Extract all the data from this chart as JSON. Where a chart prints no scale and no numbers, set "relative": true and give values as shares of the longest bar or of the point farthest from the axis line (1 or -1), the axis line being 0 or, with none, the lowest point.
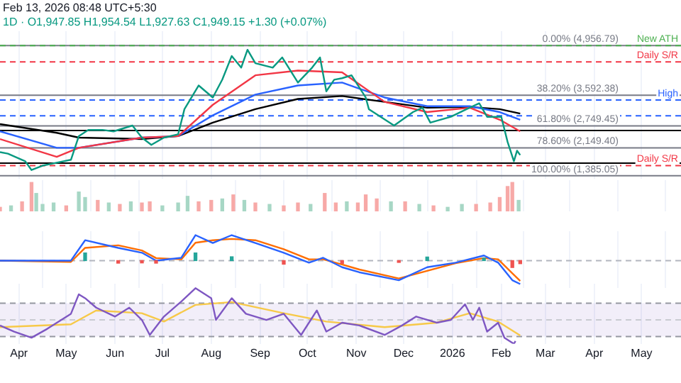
{
  "chart_data": [
    {
      "type": "line",
      "title": "Feb 13, 2026 08:48 UTC+5:30",
      "subtitle": "1D · O1,947.85 H1,954.54 L1,927.63 C1,949.15 +1.30 (+0.07%)",
      "xlim": [
        "2025-03-20",
        "2026-05-26"
      ],
      "xticks": [
        "2025-04-01",
        "2025-05-01",
        "2025-06-01",
        "2025-07-01",
        "2025-08-01",
        "2025-09-01",
        "2025-10-01",
        "2025-11-01",
        "2025-12-01",
        "2026-01-01",
        "2026-02-01",
        "2026-03-01",
        "2026-04-01",
        "2026-05-01"
      ],
      "ylim": [
        1300,
        5350
      ],
      "tick_labels": false,
      "grid": "x",
      "x": [
        "2025-03-20",
        "2025-04-25",
        "2025-05-09",
        "2025-06-18",
        "2025-07-11",
        "2025-08-02",
        "2025-08-29",
        "2025-09-25",
        "2025-10-23",
        "2025-11-19",
        "2025-12-16",
        "2026-01-12",
        "2026-01-31",
        "2026-02-13"
      ],
      "series": [
        {
          "type": "line",
          "color": "#089981",
          "x": [
            "2025-03-20",
            "2025-03-25",
            "2025-04-05",
            "2025-04-09",
            "2025-04-16",
            "2025-04-25",
            "2025-05-04",
            "2025-05-09",
            "2025-05-15",
            "2025-05-24",
            "2025-05-31",
            "2025-06-12",
            "2025-06-18",
            "2025-06-24",
            "2025-07-02",
            "2025-07-11",
            "2025-07-15",
            "2025-07-24",
            "2025-08-02",
            "2025-08-08",
            "2025-08-14",
            "2025-08-20",
            "2025-08-24",
            "2025-08-29",
            "2025-09-09",
            "2025-09-15",
            "2025-09-25",
            "2025-10-04",
            "2025-10-09",
            "2025-10-13",
            "2025-10-18",
            "2025-10-23",
            "2025-10-29",
            "2025-11-07",
            "2025-11-09",
            "2025-11-25",
            "2025-12-07",
            "2025-12-13",
            "2025-12-18",
            "2025-12-31",
            "2026-01-10",
            "2026-01-18",
            "2026-01-23",
            "2026-02-01",
            "2026-02-05",
            "2026-02-09",
            "2026-02-11",
            "2026-02-13"
          ],
          "values": [
            2030,
            1990,
            1780,
            1540,
            1660,
            1740,
            1820,
            2470,
            2640,
            2640,
            2600,
            2760,
            2430,
            2230,
            2430,
            2520,
            3210,
            3860,
            3530,
            4020,
            4670,
            4350,
            4840,
            4470,
            4350,
            4630,
            3940,
            4350,
            4630,
            3700,
            4020,
            4060,
            4140,
            3530,
            3210,
            2760,
            3130,
            3250,
            2840,
            3000,
            3210,
            3370,
            3000,
            3000,
            2310,
            1780,
            2070,
            1950
          ]
        },
        {
          "type": "line",
          "color": "#f23645",
          "values": [
            2390,
            1900,
            2150,
            2430,
            2470,
            3330,
            4140,
            4270,
            4220,
            3410,
            3130,
            3250,
            2920,
            2600
          ]
        },
        {
          "type": "line",
          "color": "#2962ff",
          "values": [
            2600,
            2150,
            2150,
            2430,
            2470,
            3040,
            3610,
            3860,
            3940,
            3530,
            3290,
            3290,
            3130,
            2920
          ]
        },
        {
          "type": "line",
          "color": "#000000",
          "values": [
            2800,
            2560,
            2430,
            2390,
            2470,
            2840,
            3210,
            3490,
            3570,
            3410,
            3250,
            3270,
            3210,
            3090
          ]
        }
      ],
      "ref_lines": [
        {
          "axis": "y",
          "value": 4956.79,
          "label": "0.00% (4,956.79)",
          "color": "#787b86"
        },
        {
          "axis": "y",
          "value": 4956.79,
          "label": "New ATH",
          "color": "#4caf50",
          "line_style": "dashed"
        },
        {
          "axis": "y",
          "value": 4510,
          "label": "Daily S/R",
          "color": "#f23645",
          "line_style": "dashed"
        },
        {
          "axis": "y",
          "value": 3592.38,
          "label": "38.20% (3,592.38)",
          "color": "#787b86"
        },
        {
          "axis": "y",
          "value": 3460,
          "label": "High",
          "color": "#2962ff",
          "line_style": "dashed"
        },
        {
          "axis": "y",
          "value": 3030,
          "color": "#2962ff",
          "line_style": "dashed"
        },
        {
          "axis": "y",
          "value": 2749.45,
          "label": "61.80% (2,749.45)",
          "color": "#787b86"
        },
        {
          "axis": "y",
          "value": 2625,
          "color": "#000000"
        },
        {
          "axis": "y",
          "value": 2149.4,
          "label": "78.60% (2,149.40)",
          "color": "#787b86"
        },
        {
          "axis": "y",
          "value": 1730,
          "color": "#000000"
        },
        {
          "axis": "y",
          "value": 1660,
          "label": "Daily S/R",
          "color": "#f23645",
          "line_style": "dashed"
        },
        {
          "axis": "y",
          "value": 1385.05,
          "label": "100.00% (1,385.05)",
          "color": "#787b86"
        }
      ]
    },
    {
      "type": "bar",
      "relative": true,
      "tick_labels": false,
      "grid": "x",
      "xlim": [
        "2025-03-20",
        "2026-05-26"
      ],
      "xticks": [
        "2025-04-01",
        "2025-05-01",
        "2025-06-01",
        "2025-07-01",
        "2025-08-01",
        "2025-09-01",
        "2025-10-01",
        "2025-11-01",
        "2025-12-01",
        "2026-01-01",
        "2026-02-01",
        "2026-03-01",
        "2026-04-01",
        "2026-05-01"
      ],
      "x": [
        "2025-03-20",
        "2025-03-27",
        "2025-04-03",
        "2025-04-09",
        "2025-04-12",
        "2025-04-16",
        "2025-04-23",
        "2025-05-01",
        "2025-05-09",
        "2025-05-13",
        "2025-05-21",
        "2025-05-28",
        "2025-06-04",
        "2025-06-11",
        "2025-06-18",
        "2025-06-23",
        "2025-07-01",
        "2025-07-11",
        "2025-07-17",
        "2025-07-24",
        "2025-08-01",
        "2025-08-08",
        "2025-08-15",
        "2025-08-22",
        "2025-08-29",
        "2025-09-07",
        "2025-09-16",
        "2025-09-25",
        "2025-10-03",
        "2025-10-12",
        "2025-10-19",
        "2025-10-26",
        "2025-11-02",
        "2025-11-07",
        "2025-11-14",
        "2025-11-23",
        "2025-12-02",
        "2025-12-11",
        "2025-12-20",
        "2025-12-29",
        "2026-01-07",
        "2026-01-16",
        "2026-01-25",
        "2026-01-31",
        "2026-02-05",
        "2026-02-08",
        "2026-02-12"
      ],
      "values": [
        0.14,
        0.19,
        0.33,
        1,
        0.62,
        0.24,
        0.29,
        0.19,
        0.67,
        0.48,
        0.38,
        0.29,
        0.24,
        0.33,
        0.29,
        0.33,
        0.19,
        0.29,
        0.52,
        0.33,
        0.38,
        0.43,
        0.57,
        0.38,
        0.29,
        0.24,
        0.19,
        0.29,
        0.24,
        0.62,
        0.29,
        0.33,
        0.29,
        0.57,
        0.43,
        0.33,
        0.33,
        0.24,
        0.19,
        0.14,
        0.24,
        0.24,
        0.29,
        0.48,
        0.86,
        1,
        0.38
      ],
      "colors": [
        "#f7a9a7",
        "#a7d7c5",
        "#f7a9a7",
        "#f7a9a7",
        "#a7d7c5",
        "#a7d7c5",
        "#a7d7c5",
        "#f7a9a7",
        "#a7d7c5",
        "#a7d7c5",
        "#f7a9a7",
        "#a7d7c5",
        "#f7a9a7",
        "#a7d7c5",
        "#f7a9a7",
        "#f7a9a7",
        "#a7d7c5",
        "#a7d7c5",
        "#a7d7c5",
        "#f7a9a7",
        "#f7a9a7",
        "#a7d7c5",
        "#f7a9a7",
        "#a7d7c5",
        "#f7a9a7",
        "#a7d7c5",
        "#f7a9a7",
        "#f7a9a7",
        "#a7d7c5",
        "#f7a9a7",
        "#f7a9a7",
        "#a7d7c5",
        "#f7a9a7",
        "#f7a9a7",
        "#f7a9a7",
        "#a7d7c5",
        "#f7a9a7",
        "#a7d7c5",
        "#f7a9a7",
        "#a7d7c5",
        "#a7d7c5",
        "#f7a9a7",
        "#f7a9a7",
        "#f7a9a7",
        "#f7a9a7",
        "#f7a9a7",
        "#a7d7c5"
      ]
    },
    {
      "type": "line",
      "relative": true,
      "tick_labels": false,
      "grid": "x",
      "xlim": [
        "2025-03-20",
        "2026-05-26"
      ],
      "xticks": [
        "2025-04-01",
        "2025-05-01",
        "2025-06-01",
        "2025-07-01",
        "2025-08-01",
        "2025-09-01",
        "2025-10-01",
        "2025-11-01",
        "2025-12-01",
        "2026-01-01",
        "2026-02-01",
        "2026-03-01",
        "2026-04-01",
        "2026-05-01"
      ],
      "x": [
        "2025-03-20",
        "2025-05-04",
        "2025-05-13",
        "2025-06-03",
        "2025-06-18",
        "2025-06-27",
        "2025-07-13",
        "2025-07-22",
        "2025-08-02",
        "2025-08-14",
        "2025-08-29",
        "2025-09-16",
        "2025-10-02",
        "2025-10-11",
        "2025-10-23",
        "2025-11-03",
        "2025-11-28",
        "2025-12-16",
        "2026-01-03",
        "2026-01-21",
        "2026-01-30",
        "2026-02-08",
        "2026-02-13"
      ],
      "series": [
        {
          "type": "bar",
          "x": [
            "2025-05-13",
            "2025-06-03",
            "2025-06-18",
            "2025-06-27",
            "2025-07-22",
            "2025-08-14",
            "2025-09-16",
            "2025-10-23",
            "2025-11-28",
            "2025-12-16",
            "2026-01-21",
            "2026-02-08",
            "2026-02-13"
          ],
          "values": [
            0.3,
            -0.1,
            -0.09,
            -0.1,
            0.3,
            0.15,
            -0.14,
            -0.11,
            -0.07,
            0.14,
            0.1,
            -0.27,
            -0.12
          ],
          "colors": [
            "#26a69a",
            "#ef5350",
            "#ef5350",
            "#ef5350",
            "#26a69a",
            "#26a69a",
            "#ef5350",
            "#ef5350",
            "#ef5350",
            "#26a69a",
            "#26a69a",
            "#ef5350",
            "#ef5350"
          ]
        },
        {
          "type": "line",
          "color": "#2962ff",
          "values": [
            0,
            0,
            0.8,
            0.5,
            0.31,
            0,
            0.11,
            1,
            0.69,
            1,
            0.69,
            0.31,
            -0.08,
            0.11,
            -0.26,
            -0.46,
            -0.77,
            -0.26,
            -0.08,
            0.2,
            -0.08,
            -0.77,
            -0.92
          ]
        },
        {
          "type": "line",
          "color": "#ff6d00",
          "values": [
            0,
            -0.05,
            0.5,
            0.6,
            0.4,
            0.1,
            0.05,
            0.7,
            0.8,
            0.85,
            0.8,
            0.45,
            0.05,
            0.05,
            -0.15,
            -0.35,
            -0.7,
            -0.4,
            -0.1,
            0.1,
            0.05,
            -0.5,
            -0.8
          ]
        }
      ],
      "ref_lines": [
        {
          "axis": "y",
          "value": 0,
          "color": "#b2b5be",
          "line_style": "dashed"
        }
      ]
    },
    {
      "type": "line",
      "relative": true,
      "tick_labels": "x",
      "grid": "x",
      "xlim": [
        "2025-03-20",
        "2026-05-26"
      ],
      "xticks": [
        {
          "value": "2025-04-01",
          "label": "Apr"
        },
        {
          "value": "2025-05-01",
          "label": "May"
        },
        {
          "value": "2025-06-01",
          "label": "Jun"
        },
        {
          "value": "2025-07-01",
          "label": "Jul"
        },
        {
          "value": "2025-08-01",
          "label": "Aug"
        },
        {
          "value": "2025-09-01",
          "label": "Sep"
        },
        {
          "value": "2025-10-01",
          "label": "Oct"
        },
        {
          "value": "2025-11-01",
          "label": "Nov"
        },
        {
          "value": "2025-12-01",
          "label": "Dec"
        },
        {
          "value": "2026-01-01",
          "label": "2026"
        },
        {
          "value": "2026-02-01",
          "label": "Feb"
        },
        {
          "value": "2026-03-01",
          "label": "Mar"
        },
        {
          "value": "2026-04-01",
          "label": "Apr"
        },
        {
          "value": "2026-05-01",
          "label": "May"
        }
      ],
      "series": [
        {
          "type": "line",
          "color": "#7e57c2",
          "x": [
            "2025-03-20",
            "2025-03-29",
            "2025-04-09",
            "2025-04-19",
            "2025-05-04",
            "2025-05-09",
            "2025-05-13",
            "2025-05-20",
            "2025-06-01",
            "2025-06-10",
            "2025-06-18",
            "2025-06-23",
            "2025-07-02",
            "2025-07-13",
            "2025-07-22",
            "2025-08-01",
            "2025-08-04",
            "2025-08-14",
            "2025-08-23",
            "2025-09-05",
            "2025-09-16",
            "2025-09-27",
            "2025-10-07",
            "2025-10-13",
            "2025-10-23",
            "2025-11-03",
            "2025-11-19",
            "2025-11-30",
            "2025-12-09",
            "2025-12-22",
            "2025-12-31",
            "2026-01-09",
            "2026-01-14",
            "2026-01-18",
            "2026-01-23",
            "2026-01-30",
            "2026-02-03",
            "2026-02-09",
            "2026-02-10"
          ],
          "values": [
            0.33,
            0.22,
            0.11,
            0.27,
            0.54,
            0.89,
            0.82,
            0.65,
            0.49,
            0.65,
            0.43,
            0.16,
            0.49,
            0.76,
            1,
            0.82,
            0.43,
            0.82,
            0.54,
            0.43,
            0.54,
            0.16,
            0.6,
            0.22,
            0.38,
            0.33,
            0.16,
            0.33,
            0.49,
            0.38,
            0.43,
            0.71,
            0.43,
            0.65,
            0.22,
            0.38,
            0.11,
            0,
            0.05
          ]
        },
        {
          "type": "line",
          "color": "#f7c948",
          "x": [
            "2025-03-20",
            "2025-05-04",
            "2025-05-20",
            "2025-06-18",
            "2025-07-02",
            "2025-07-22",
            "2025-08-14",
            "2025-09-16",
            "2025-10-13",
            "2025-11-19",
            "2025-12-22",
            "2026-01-12",
            "2026-01-30",
            "2026-02-13"
          ],
          "values": [
            0.3,
            0.35,
            0.6,
            0.55,
            0.4,
            0.7,
            0.75,
            0.55,
            0.4,
            0.3,
            0.38,
            0.55,
            0.4,
            0.15
          ]
        }
      ],
      "bands": [
        {
          "axis": "y",
          "from": 0.13,
          "to": 0.73,
          "color": "#7e57c2"
        }
      ],
      "ref_lines": [
        {
          "axis": "y",
          "value": 0.73,
          "color": "#9598a1",
          "line_style": "dashed"
        },
        {
          "axis": "y",
          "value": 0.43,
          "color": "#c9cbd1",
          "line_style": "dashed"
        },
        {
          "axis": "y",
          "value": 0.13,
          "color": "#9598a1",
          "line_style": "dashed"
        }
      ]
    }
  ]
}
